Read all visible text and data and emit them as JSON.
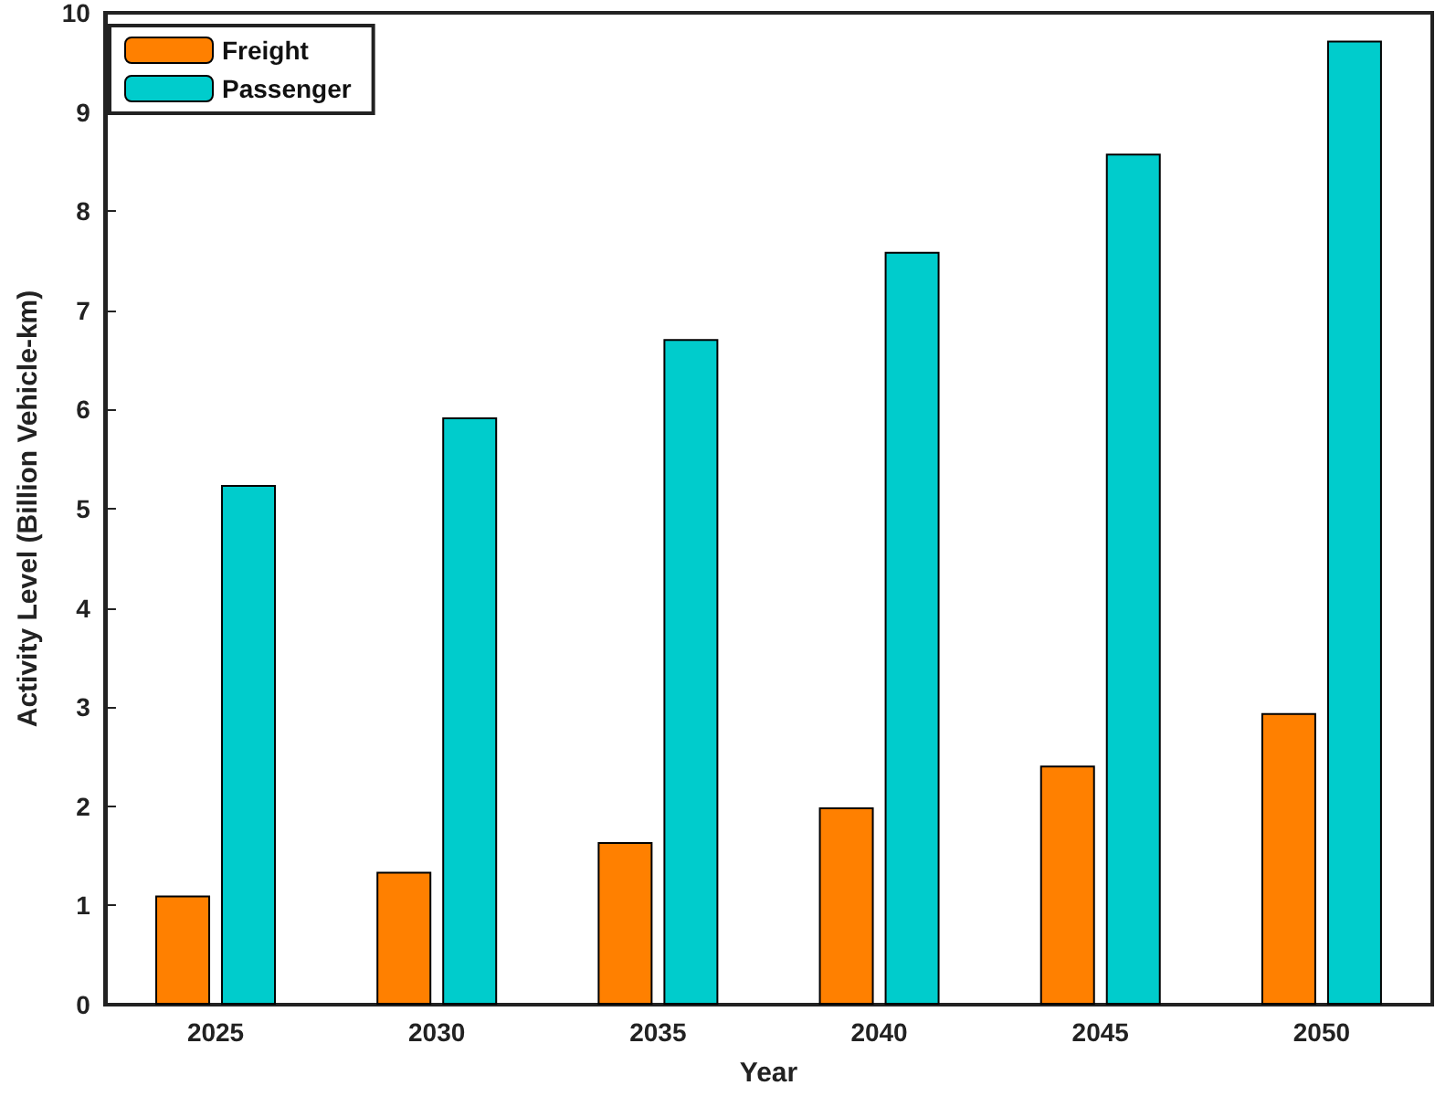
{
  "chart_data": {
    "type": "bar",
    "xlabel": "Year",
    "ylabel": "Activity Level (Billion Vehicle-km)",
    "categories": [
      "2025",
      "2030",
      "2035",
      "2040",
      "2045",
      "2050"
    ],
    "series": [
      {
        "name": "Freight",
        "color": "#ff8000",
        "values": [
          1.1,
          1.34,
          1.64,
          1.99,
          2.41,
          2.94
        ]
      },
      {
        "name": "Passenger",
        "color": "#00cccc",
        "values": [
          5.24,
          5.92,
          6.71,
          7.59,
          8.58,
          9.72
        ]
      }
    ],
    "ylim": [
      0,
      10
    ],
    "yticks": [
      0,
      1,
      2,
      3,
      4,
      5,
      6,
      7,
      8,
      9,
      10
    ],
    "grid": false,
    "legend": "top left"
  }
}
